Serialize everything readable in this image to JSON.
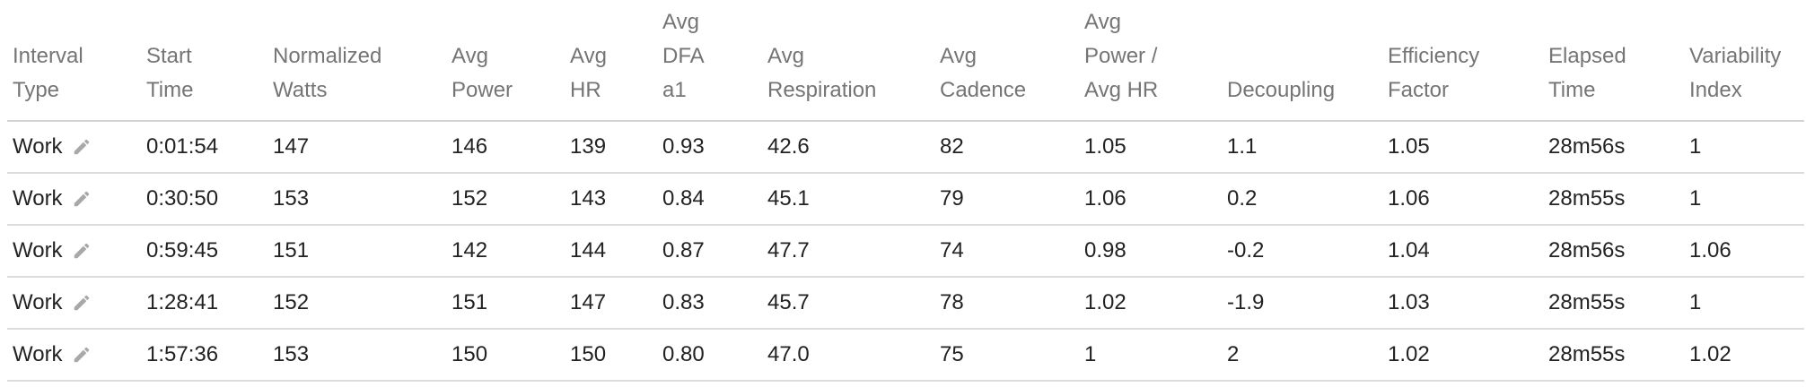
{
  "table": {
    "headers": [
      "Interval Type",
      "Start Time",
      "Normalized Watts",
      "Avg Power",
      "Avg HR",
      "Avg DFA a1",
      "Avg Respiration",
      "Avg Cadence",
      "Avg Power / Avg HR",
      "Decoupling",
      "Efficiency Factor",
      "Elapsed Time",
      "Variability Index"
    ],
    "rows": [
      [
        "Work",
        "0:01:54",
        "147",
        "146",
        "139",
        "0.93",
        "42.6",
        "82",
        "1.05",
        "1.1",
        "1.05",
        "28m56s",
        "1"
      ],
      [
        "Work",
        "0:30:50",
        "153",
        "152",
        "143",
        "0.84",
        "45.1",
        "79",
        "1.06",
        "0.2",
        "1.06",
        "28m55s",
        "1"
      ],
      [
        "Work",
        "0:59:45",
        "151",
        "142",
        "144",
        "0.87",
        "47.7",
        "74",
        "0.98",
        "-0.2",
        "1.04",
        "28m56s",
        "1.06"
      ],
      [
        "Work",
        "1:28:41",
        "152",
        "151",
        "147",
        "0.83",
        "45.7",
        "78",
        "1.02",
        "-1.9",
        "1.03",
        "28m55s",
        "1"
      ],
      [
        "Work",
        "1:57:36",
        "153",
        "150",
        "150",
        "0.80",
        "47.0",
        "75",
        "1",
        "2",
        "1.02",
        "28m55s",
        "1.02"
      ]
    ]
  },
  "icons": {
    "edit": "pencil-icon"
  },
  "colors": {
    "header_text": "#757575",
    "cell_text": "#222222",
    "divider": "#dcdcdc",
    "icon": "#a8a8a8"
  }
}
